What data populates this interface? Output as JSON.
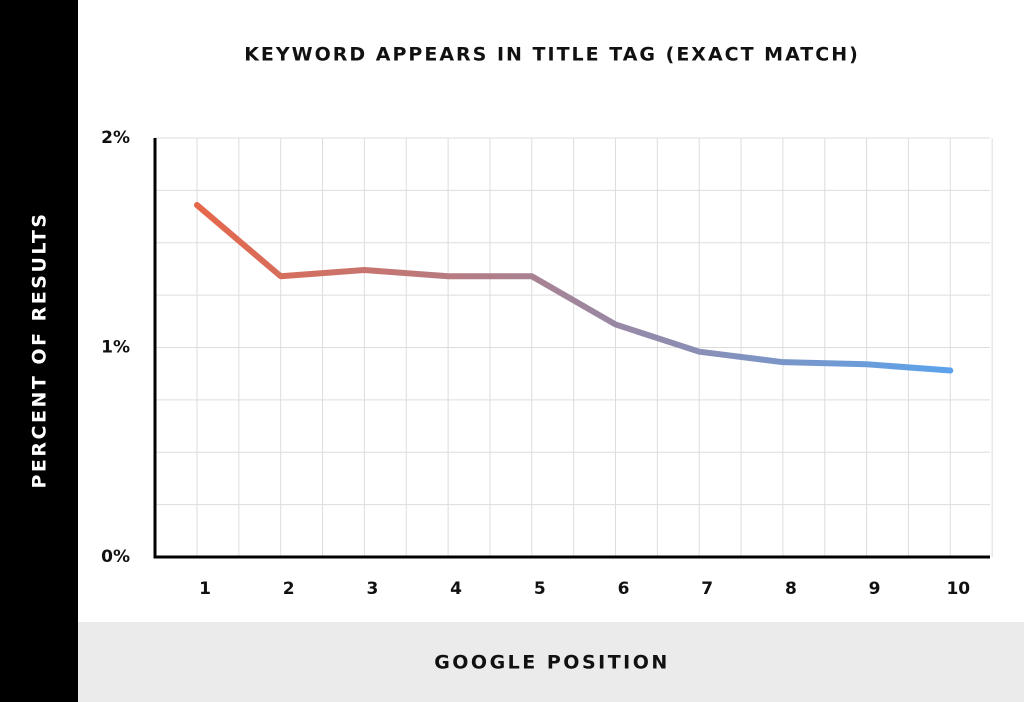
{
  "chart_data": {
    "type": "line",
    "title": "KEYWORD APPEARS IN TITLE TAG (EXACT MATCH)",
    "x_label": "GOOGLE POSITION",
    "y_label": "PERCENT OF RESULTS",
    "categories": [
      "1",
      "2",
      "3",
      "4",
      "5",
      "6",
      "7",
      "8",
      "9",
      "10"
    ],
    "series": [
      {
        "gradient": [
          "#e6674a",
          "#5ba3ec"
        ],
        "values": [
          1.68,
          1.34,
          1.37,
          1.34,
          1.34,
          1.11,
          0.98,
          0.93,
          0.92,
          0.89
        ]
      }
    ],
    "ylim": [
      0,
      2
    ],
    "yticks": [
      {
        "value": 0,
        "label": "0%"
      },
      {
        "value": 1,
        "label": "1%"
      },
      {
        "value": 2,
        "label": "2%"
      }
    ],
    "y_gridlines": [
      0.25,
      0.5,
      0.75,
      1,
      1.25,
      1.5,
      1.75,
      2
    ],
    "grid": true
  }
}
